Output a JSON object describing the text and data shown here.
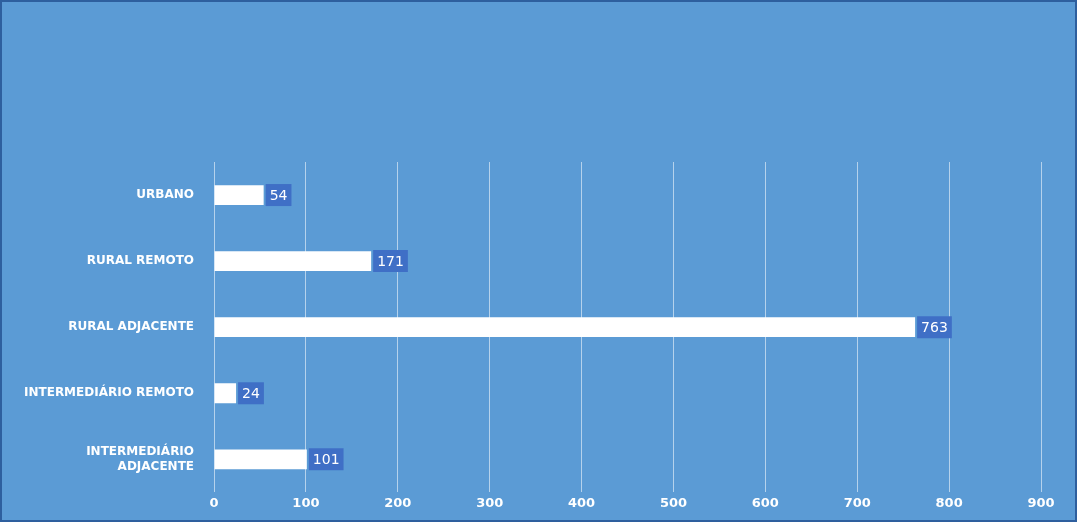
{
  "chart_data": {
    "type": "bar",
    "orientation": "horizontal",
    "categories": [
      "URBANO",
      "RURAL REMOTO",
      "RURAL ADJACENTE",
      "INTERMEDIÁRIO REMOTO",
      "INTERMEDIÁRIO ADJACENTE"
    ],
    "values": [
      54,
      171,
      763,
      24,
      101
    ],
    "color": "#ffffff",
    "xlim": [
      0,
      900
    ],
    "xticks": [
      0,
      100,
      200,
      300,
      400,
      500,
      600,
      700,
      800,
      900
    ],
    "grid": "x",
    "data_labels": true
  }
}
